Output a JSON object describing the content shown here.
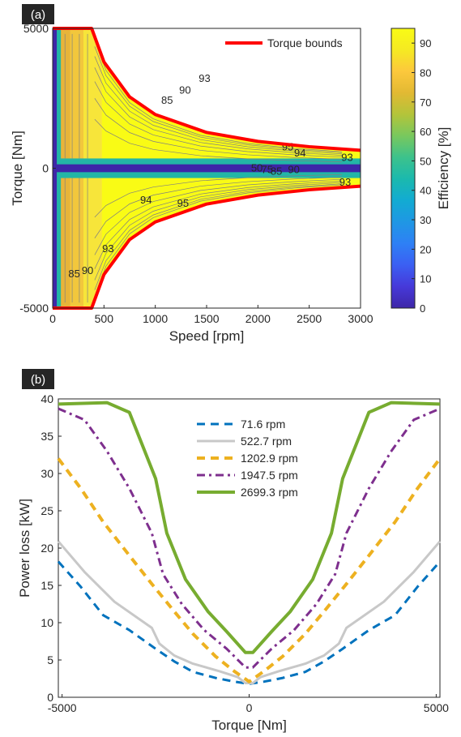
{
  "chart_data": [
    {
      "panel_label": "(a)",
      "type": "heatmap",
      "xlabel": "Speed [rpm]",
      "ylabel": "Torque [Nm]",
      "xlim": [
        0,
        3000
      ],
      "ylim": [
        -5000,
        5000
      ],
      "x_ticks": [
        0,
        500,
        1000,
        1500,
        2000,
        2500,
        3000
      ],
      "y_ticks": [
        -5000,
        0,
        5000
      ],
      "y_tick_labels": [
        "-5000",
        "0",
        "5000"
      ],
      "colorbar": {
        "label": "Efficiency [%]",
        "range": [
          0,
          95
        ],
        "ticks": [
          0,
          10,
          20,
          30,
          40,
          50,
          60,
          70,
          80,
          90
        ],
        "colors": [
          "#3e26a8",
          "#4639d9",
          "#3b5ff3",
          "#2e80f5",
          "#1f97e4",
          "#12abd2",
          "#1bb9ae",
          "#3cc28c",
          "#78c85e",
          "#b3c43a",
          "#e2b933",
          "#fcc83c",
          "#f5ea22",
          "#f9fb15"
        ]
      },
      "legend": {
        "entries": [
          {
            "name": "Torque bounds",
            "color": "#ff0000"
          }
        ],
        "position": "top-right"
      },
      "torque_bound": {
        "corner_speed": 380,
        "max_torque": 5000,
        "points": [
          [
            380,
            5000
          ],
          [
            500,
            3800
          ],
          [
            750,
            2550
          ],
          [
            1000,
            1920
          ],
          [
            1500,
            1280
          ],
          [
            2000,
            960
          ],
          [
            2500,
            770
          ],
          [
            3000,
            640
          ]
        ]
      },
      "contour_labels": [
        {
          "text": "93",
          "x": 1480,
          "y": 3230
        },
        {
          "text": "90",
          "x": 1290,
          "y": 2810
        },
        {
          "text": "85",
          "x": 1115,
          "y": 2450
        },
        {
          "text": "95",
          "x": 2290,
          "y": 780
        },
        {
          "text": "94",
          "x": 2410,
          "y": 560
        },
        {
          "text": "93",
          "x": 2870,
          "y": 400
        },
        {
          "text": "50",
          "x": 1990,
          "y": 30
        },
        {
          "text": "75",
          "x": 2090,
          "y": -30
        },
        {
          "text": "85",
          "x": 2180,
          "y": -80
        },
        {
          "text": "90",
          "x": 2350,
          "y": -30
        },
        {
          "text": "93",
          "x": 2850,
          "y": -480
        },
        {
          "text": "94",
          "x": 910,
          "y": -1110
        },
        {
          "text": "95",
          "x": 1270,
          "y": -1230
        },
        {
          "text": "93",
          "x": 540,
          "y": -2860
        },
        {
          "text": "90",
          "x": 340,
          "y": -3640
        },
        {
          "text": "85",
          "x": 210,
          "y": -3750
        }
      ],
      "contour_colors": {
        "yellow": "#f9fb15",
        "light_orange": "#f7e53a",
        "orange": "#f2c73c",
        "dark_orange": "#e7b43a",
        "teal": "#23b6a6",
        "dark_blue": "#3e26a8",
        "line": "#808080"
      }
    },
    {
      "panel_label": "(b)",
      "type": "line",
      "xlabel": "Torque [Nm]",
      "ylabel": "Power loss [kW]",
      "xlim": [
        -5100,
        5100
      ],
      "ylim": [
        0,
        40
      ],
      "x_ticks": [
        -5000,
        0,
        5000
      ],
      "x_tick_labels": [
        "-5000",
        "0",
        "5000"
      ],
      "y_ticks": [
        0,
        5,
        10,
        15,
        20,
        25,
        30,
        35,
        40
      ],
      "legend_position": "top-center",
      "series": [
        {
          "name": "71.6 rpm",
          "color": "#0072bd",
          "dash": "dash",
          "width": 3,
          "points": [
            [
              -5100,
              18.2
            ],
            [
              -4500,
              14.8
            ],
            [
              -3900,
              11.0
            ],
            [
              -3200,
              9.0
            ],
            [
              -2500,
              6.5
            ],
            [
              -2000,
              4.8
            ],
            [
              -1500,
              3.4
            ],
            [
              -900,
              2.6
            ],
            [
              -400,
              2.1
            ],
            [
              0,
              1.8
            ],
            [
              400,
              2.1
            ],
            [
              900,
              2.6
            ],
            [
              1500,
              3.4
            ],
            [
              2000,
              4.8
            ],
            [
              2500,
              6.5
            ],
            [
              3200,
              9.0
            ],
            [
              3900,
              11.0
            ],
            [
              4500,
              14.8
            ],
            [
              5100,
              18.2
            ]
          ]
        },
        {
          "name": "522.7 rpm",
          "color": "#c8c8c8",
          "dash": "solid",
          "width": 3,
          "points": [
            [
              -5100,
              20.9
            ],
            [
              -4400,
              16.8
            ],
            [
              -3600,
              12.8
            ],
            [
              -2600,
              9.3
            ],
            [
              -2400,
              7.2
            ],
            [
              -2000,
              5.6
            ],
            [
              -1500,
              4.5
            ],
            [
              -800,
              3.5
            ],
            [
              -300,
              2.7
            ],
            [
              -100,
              1.9
            ],
            [
              100,
              1.9
            ],
            [
              300,
              2.7
            ],
            [
              800,
              3.5
            ],
            [
              1500,
              4.5
            ],
            [
              2000,
              5.6
            ],
            [
              2400,
              7.2
            ],
            [
              2600,
              9.3
            ],
            [
              3600,
              12.8
            ],
            [
              4400,
              16.8
            ],
            [
              5100,
              20.9
            ]
          ]
        },
        {
          "name": "1202.9 rpm",
          "color": "#edb120",
          "dash": "dash",
          "width": 4,
          "points": [
            [
              -5100,
              32.0
            ],
            [
              -4500,
              28.0
            ],
            [
              -3900,
              23.5
            ],
            [
              -3200,
              19.0
            ],
            [
              -2600,
              15.2
            ],
            [
              -2000,
              11.5
            ],
            [
              -1500,
              8.5
            ],
            [
              -900,
              5.5
            ],
            [
              -400,
              3.5
            ],
            [
              0,
              2.1
            ],
            [
              400,
              3.5
            ],
            [
              900,
              5.5
            ],
            [
              1500,
              8.5
            ],
            [
              2000,
              11.5
            ],
            [
              2600,
              15.2
            ],
            [
              3200,
              19.0
            ],
            [
              3900,
              23.5
            ],
            [
              4500,
              28.0
            ],
            [
              5100,
              32.0
            ]
          ]
        },
        {
          "name": "1947.5 rpm",
          "color": "#7e2f8e",
          "dash": "dashdot",
          "width": 3,
          "points": [
            [
              -5100,
              38.7
            ],
            [
              -4400,
              37.2
            ],
            [
              -3800,
              33.0
            ],
            [
              -3200,
              28.0
            ],
            [
              -2600,
              22.0
            ],
            [
              -2300,
              16.5
            ],
            [
              -1800,
              12.5
            ],
            [
              -1200,
              9.0
            ],
            [
              -600,
              6.5
            ],
            [
              -100,
              4.0
            ],
            [
              100,
              4.0
            ],
            [
              600,
              6.5
            ],
            [
              1200,
              9.0
            ],
            [
              1800,
              12.5
            ],
            [
              2300,
              16.5
            ],
            [
              2600,
              22.0
            ],
            [
              3200,
              28.0
            ],
            [
              3800,
              33.0
            ],
            [
              4400,
              37.2
            ],
            [
              5100,
              38.7
            ]
          ]
        },
        {
          "name": "2699.3 rpm",
          "color": "#77ac30",
          "dash": "solid",
          "width": 4,
          "points": [
            [
              -5100,
              39.3
            ],
            [
              -3800,
              39.5
            ],
            [
              -3200,
              38.2
            ],
            [
              -2500,
              29.3
            ],
            [
              -2200,
              22.0
            ],
            [
              -1700,
              15.8
            ],
            [
              -1100,
              11.5
            ],
            [
              -600,
              8.8
            ],
            [
              -100,
              6.0
            ],
            [
              100,
              6.0
            ],
            [
              600,
              8.8
            ],
            [
              1100,
              11.5
            ],
            [
              1700,
              15.8
            ],
            [
              2200,
              22.0
            ],
            [
              2500,
              29.3
            ],
            [
              3200,
              38.2
            ],
            [
              3800,
              39.5
            ],
            [
              5100,
              39.3
            ]
          ]
        }
      ]
    }
  ]
}
